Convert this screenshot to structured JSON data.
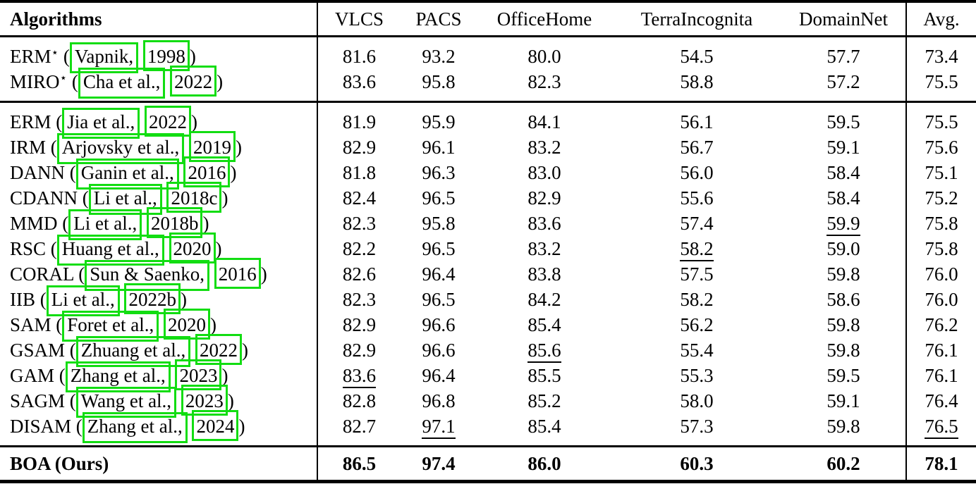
{
  "annotation": {
    "citation_box_color": "#12dd12"
  },
  "table": {
    "headers": {
      "algorithms": "Algorithms",
      "cols": [
        "VLCS",
        "PACS",
        "OfficeHome",
        "TerraIncognita",
        "DomainNet"
      ],
      "avg": "Avg."
    },
    "groups": [
      {
        "rows": [
          {
            "algo": "ERM",
            "star": true,
            "author": "Vapnik,",
            "year": "1998",
            "values": [
              "81.6",
              "93.2",
              "80.0",
              "54.5",
              "57.7"
            ],
            "avg": "73.4",
            "underline": [],
            "avg_underline": false
          },
          {
            "algo": "MIRO",
            "star": true,
            "author": "Cha et al.,",
            "year": "2022",
            "values": [
              "83.6",
              "95.8",
              "82.3",
              "58.8",
              "57.2"
            ],
            "avg": "75.5",
            "underline": [],
            "avg_underline": false
          }
        ]
      },
      {
        "rows": [
          {
            "algo": "ERM",
            "star": false,
            "author": "Jia et al.,",
            "year": "2022",
            "values": [
              "81.9",
              "95.9",
              "84.1",
              "56.1",
              "59.5"
            ],
            "avg": "75.5",
            "underline": [],
            "avg_underline": false
          },
          {
            "algo": "IRM",
            "star": false,
            "author": "Arjovsky et al.,",
            "year": "2019",
            "values": [
              "82.9",
              "96.1",
              "83.2",
              "56.7",
              "59.1"
            ],
            "avg": "75.6",
            "underline": [],
            "avg_underline": false
          },
          {
            "algo": "DANN",
            "star": false,
            "author": "Ganin et al.,",
            "year": "2016",
            "values": [
              "81.8",
              "96.3",
              "83.0",
              "56.0",
              "58.4"
            ],
            "avg": "75.1",
            "underline": [],
            "avg_underline": false
          },
          {
            "algo": "CDANN",
            "star": false,
            "author": "Li et al.,",
            "year": "2018c",
            "values": [
              "82.4",
              "96.5",
              "82.9",
              "55.6",
              "58.4"
            ],
            "avg": "75.2",
            "underline": [],
            "avg_underline": false
          },
          {
            "algo": "MMD",
            "star": false,
            "author": "Li et al.,",
            "year": "2018b",
            "values": [
              "82.3",
              "95.8",
              "83.6",
              "57.4",
              "59.9"
            ],
            "avg": "75.8",
            "underline": [
              4
            ],
            "avg_underline": false
          },
          {
            "algo": "RSC",
            "star": false,
            "author": "Huang et al.,",
            "year": "2020",
            "values": [
              "82.2",
              "96.5",
              "83.2",
              "58.2",
              "59.0"
            ],
            "avg": "75.8",
            "underline": [
              3
            ],
            "avg_underline": false
          },
          {
            "algo": "CORAL",
            "star": false,
            "author": "Sun & Saenko,",
            "year": "2016",
            "values": [
              "82.6",
              "96.4",
              "83.8",
              "57.5",
              "59.8"
            ],
            "avg": "76.0",
            "underline": [],
            "avg_underline": false
          },
          {
            "algo": "IIB",
            "star": false,
            "author": "Li et al.,",
            "year": "2022b",
            "values": [
              "82.3",
              "96.5",
              "84.2",
              "58.2",
              "58.6"
            ],
            "avg": "76.0",
            "underline": [],
            "avg_underline": false
          },
          {
            "algo": "SAM",
            "star": false,
            "author": "Foret et al.,",
            "year": "2020",
            "values": [
              "82.9",
              "96.6",
              "85.4",
              "56.2",
              "59.8"
            ],
            "avg": "76.2",
            "underline": [],
            "avg_underline": false
          },
          {
            "algo": "GSAM",
            "star": false,
            "author": "Zhuang et al.,",
            "year": "2022",
            "values": [
              "82.9",
              "96.6",
              "85.6",
              "55.4",
              "59.8"
            ],
            "avg": "76.1",
            "underline": [
              2
            ],
            "avg_underline": false
          },
          {
            "algo": "GAM",
            "star": false,
            "author": "Zhang et al.,",
            "year": "2023",
            "values": [
              "83.6",
              "96.4",
              "85.5",
              "55.3",
              "59.5"
            ],
            "avg": "76.1",
            "underline": [
              0
            ],
            "avg_underline": false
          },
          {
            "algo": "SAGM",
            "star": false,
            "author": "Wang et al.,",
            "year": "2023",
            "values": [
              "82.8",
              "96.8",
              "85.2",
              "58.0",
              "59.1"
            ],
            "avg": "76.4",
            "underline": [],
            "avg_underline": false
          },
          {
            "algo": "DISAM",
            "star": false,
            "author": "Zhang et al.,",
            "year": "2024",
            "values": [
              "82.7",
              "97.1",
              "85.4",
              "57.3",
              "59.8"
            ],
            "avg": "76.5",
            "underline": [
              1
            ],
            "avg_underline": true
          }
        ]
      }
    ],
    "footer_row": {
      "label": "BOA (Ours)",
      "values": [
        "86.5",
        "97.4",
        "86.0",
        "60.3",
        "60.2"
      ],
      "avg": "78.1"
    }
  }
}
